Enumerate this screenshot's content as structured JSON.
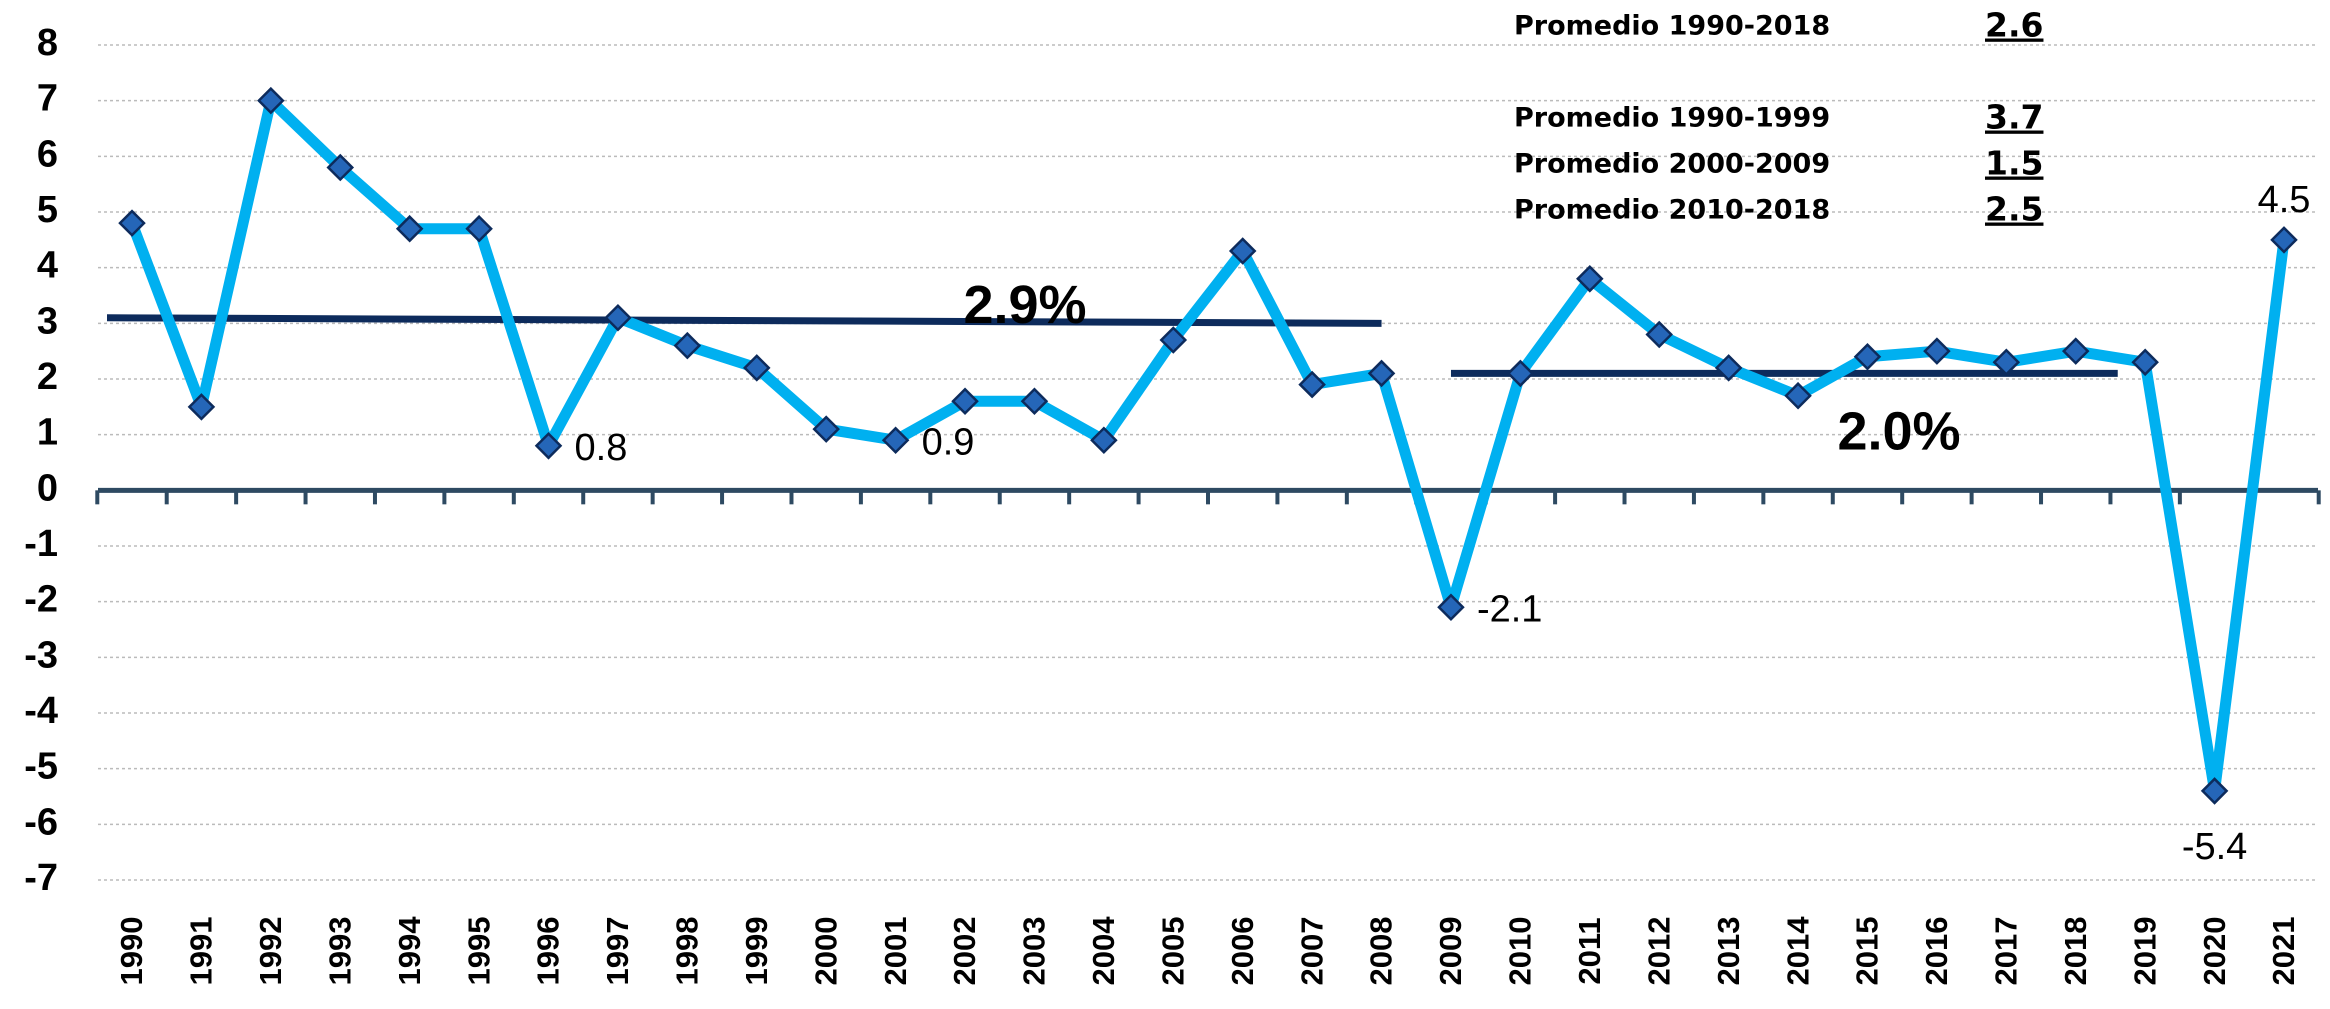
{
  "chart_data": {
    "type": "line",
    "categories": [
      "1990",
      "1991",
      "1992",
      "1993",
      "1994",
      "1995",
      "1996",
      "1997",
      "1998",
      "1999",
      "2000",
      "2001",
      "2002",
      "2003",
      "2004",
      "2005",
      "2006",
      "2007",
      "2008",
      "2009",
      "2010",
      "2011",
      "2012",
      "2013",
      "2014",
      "2015",
      "2016",
      "2017",
      "2018",
      "2019",
      "2020",
      "2021"
    ],
    "series": [
      {
        "color": "#00b0f0",
        "values": [
          4.8,
          1.5,
          7.0,
          5.8,
          4.7,
          4.7,
          0.8,
          3.1,
          2.6,
          2.2,
          1.1,
          0.9,
          1.6,
          1.6,
          0.9,
          2.7,
          4.3,
          1.9,
          2.1,
          -2.1,
          2.1,
          3.8,
          2.8,
          2.2,
          1.7,
          2.4,
          2.5,
          2.3,
          2.5,
          2.3,
          -5.4,
          4.5
        ],
        "value_labels": [
          null,
          null,
          null,
          null,
          null,
          null,
          "0.8",
          null,
          null,
          null,
          null,
          "0.9",
          null,
          null,
          null,
          null,
          null,
          null,
          null,
          "-2.1",
          null,
          null,
          null,
          null,
          null,
          null,
          null,
          null,
          null,
          null,
          "-5.4",
          "4.5"
        ]
      }
    ],
    "ylim": [
      -7,
      8
    ],
    "yticks": [
      -7,
      -6,
      -5,
      -4,
      -3,
      -2,
      -1,
      0,
      1,
      2,
      3,
      4,
      5,
      6,
      7,
      8
    ],
    "grid": true,
    "reference_lines": [
      {
        "label": "2.9%",
        "from": "1990",
        "to": "2008",
        "values": [
          3.1,
          3.0
        ],
        "color": "#0d2b5c"
      },
      {
        "label": "2.0%",
        "from": "2009",
        "to": "2018",
        "values": [
          2.1,
          2.1
        ],
        "color": "#0d2b5c"
      }
    ],
    "summary": [
      {
        "label": "Promedio 1990-2018",
        "value": 2.6
      },
      {
        "label": "Promedio 1990-1999",
        "value": 3.7
      },
      {
        "label": "Promedio 2000-2009",
        "value": 1.5
      },
      {
        "label": "Promedio 2010-2018",
        "value": 2.5
      }
    ]
  }
}
